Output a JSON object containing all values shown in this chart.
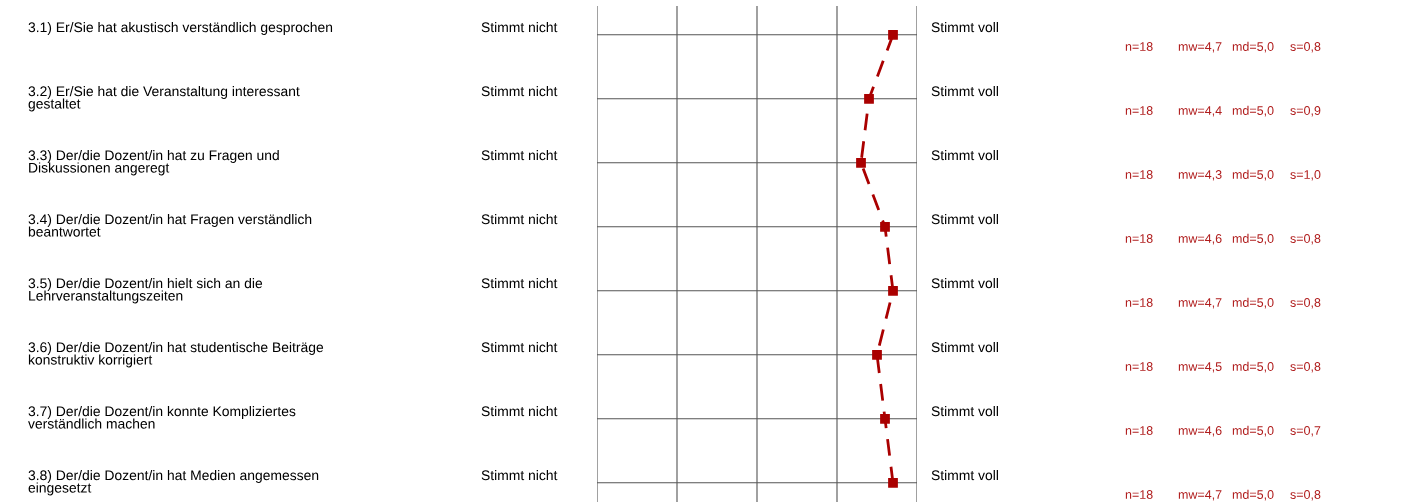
{
  "chart_data": {
    "type": "line",
    "orientation": "horizontal",
    "categories": [
      "3.1) Er/Sie hat akustisch verständlich gesprochen",
      "3.2) Er/Sie hat die Veranstaltung interessant\ngestaltet",
      "3.3) Der/die Dozent/in hat zu Fragen und\nDiskussionen angeregt",
      "3.4) Der/die Dozent/in hat Fragen verständlich\nbeantwortet",
      "3.5) Der/die Dozent/in hielt sich an die\nLehrveranstaltungszeiten",
      "3.6) Der/die Dozent/in hat studentische Beiträge\nkonstruktiv korrigiert",
      "3.7) Der/die Dozent/in konnte Kompliziertes\nverständlich machen",
      "3.8) Der/die Dozent/in hat Medien angemessen\neingesetzt"
    ],
    "series": [
      {
        "color": "#aa0000",
        "values": [
          4.7,
          4.4,
          4.3,
          4.6,
          4.7,
          4.5,
          4.6,
          4.7
        ],
        "value_labels": [
          "mw=4,7",
          "mw=4,4",
          "mw=4,3",
          "mw=4,6",
          "mw=4,7",
          "mw=4,5",
          "mw=4,6",
          "mw=4,7"
        ]
      }
    ],
    "xlim": [
      1,
      5
    ],
    "xticks": [
      {
        "value": 1,
        "label": null
      },
      {
        "value": 2,
        "label": null
      },
      {
        "value": 3,
        "label": null
      },
      {
        "value": 4,
        "label": null
      },
      {
        "value": 5,
        "label": null
      }
    ],
    "grid": true,
    "marker": "square",
    "line_style": "dashed",
    "annotations": [
      "Stimmt nicht",
      "Stimmt voll",
      "n=18",
      "md=5,0",
      "s=0,8",
      "Stimmt nicht",
      "Stimmt voll",
      "n=18",
      "md=5,0",
      "s=0,9",
      "Stimmt nicht",
      "Stimmt voll",
      "n=18",
      "md=5,0",
      "s=1,0",
      "Stimmt nicht",
      "Stimmt voll",
      "n=18",
      "md=5,0",
      "s=0,8",
      "Stimmt nicht",
      "Stimmt voll",
      "n=18",
      "md=5,0",
      "s=0,8",
      "Stimmt nicht",
      "Stimmt voll",
      "n=18",
      "md=5,0",
      "s=0,8",
      "Stimmt nicht",
      "Stimmt voll",
      "n=18",
      "md=5,0",
      "s=0,7",
      "Stimmt nicht",
      "Stimmt voll",
      "n=18",
      "md=5,0",
      "s=0,8"
    ]
  }
}
